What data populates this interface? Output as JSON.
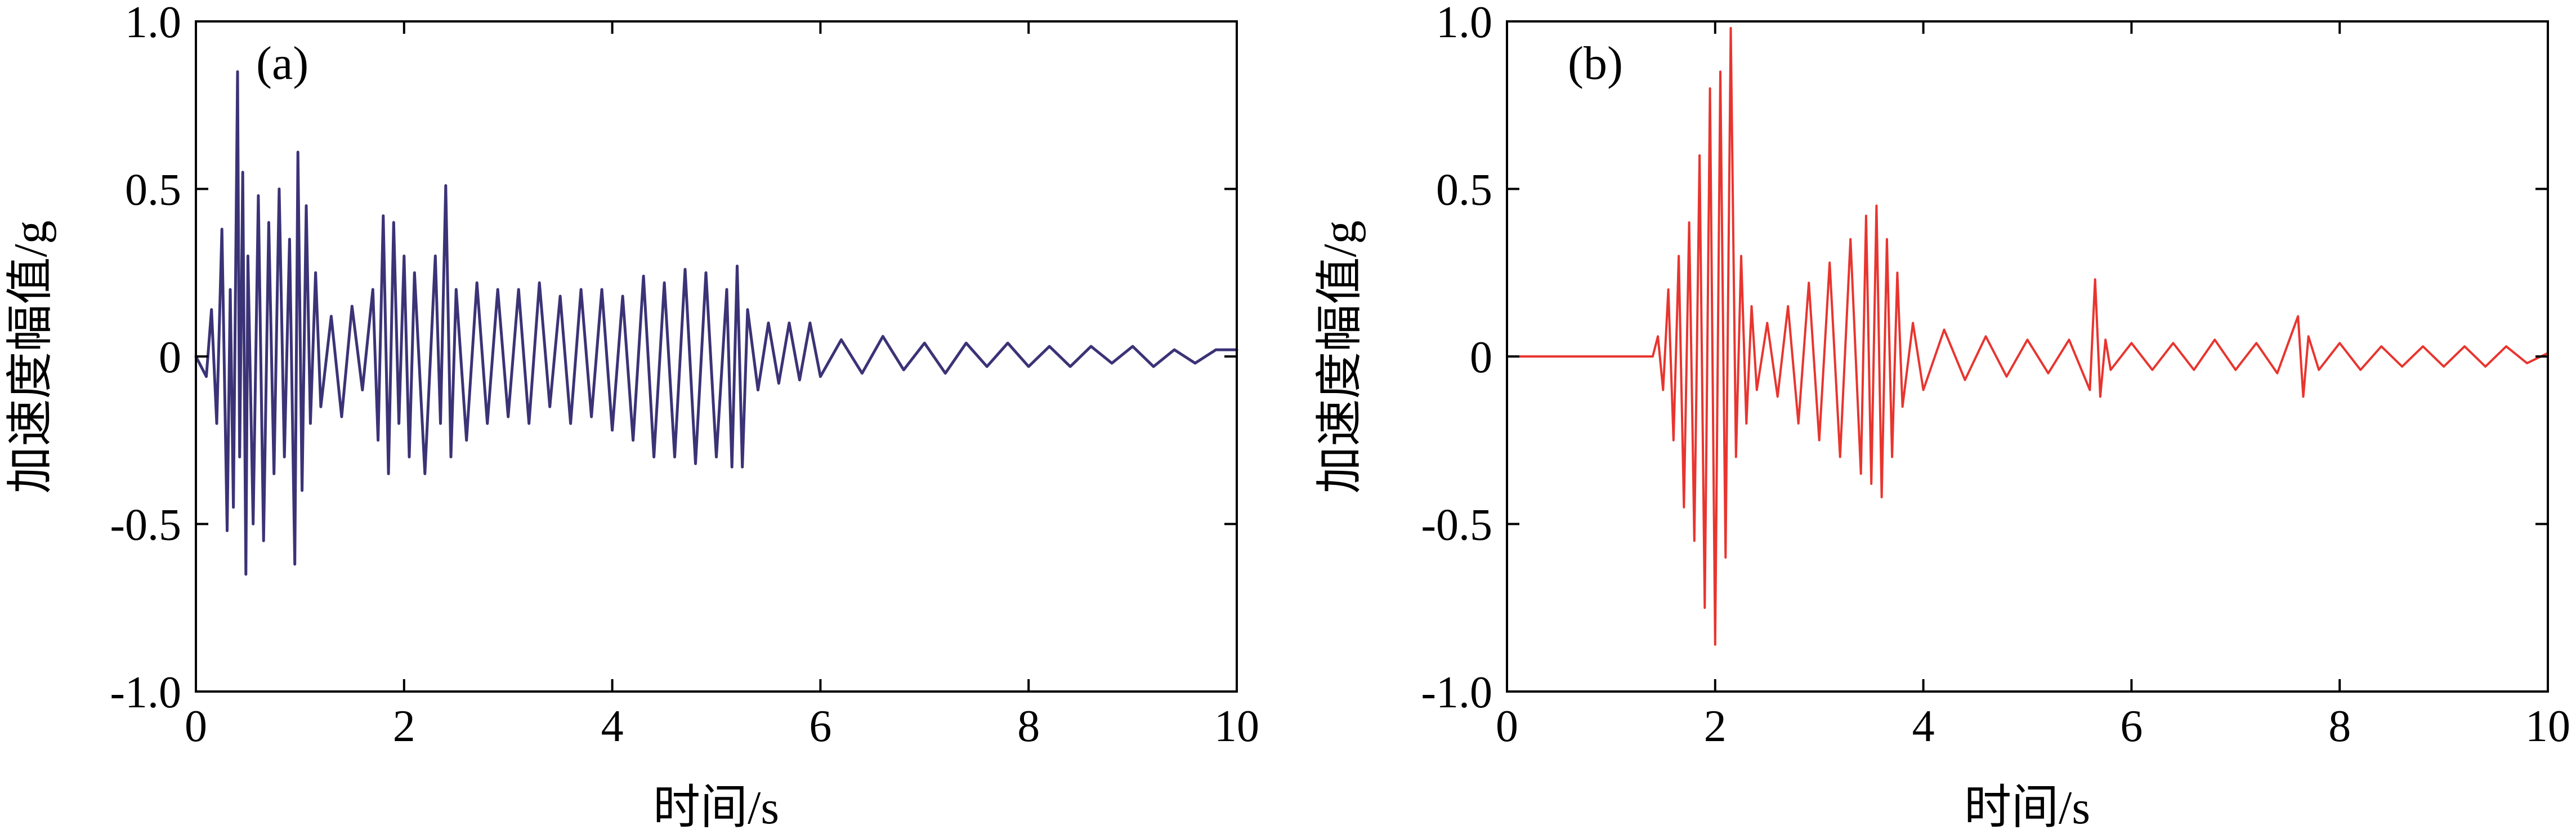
{
  "chart_data": [
    {
      "type": "line",
      "panel_label": "(a)",
      "xlabel": "时间/s",
      "ylabel": "加速度幅值/g",
      "xlim": [
        0,
        10
      ],
      "ylim": [
        -1.0,
        1.0
      ],
      "x_ticks": [
        "0",
        "2",
        "4",
        "6",
        "8",
        "10"
      ],
      "y_ticks": [
        "1.0",
        "0.5",
        "0",
        "-0.5",
        "-1.0"
      ],
      "grid": false,
      "color": "#3b3376",
      "series": [
        {
          "name": "加速度幅值",
          "x": [
            0.0,
            0.1,
            0.15,
            0.2,
            0.25,
            0.3,
            0.33,
            0.36,
            0.4,
            0.42,
            0.45,
            0.48,
            0.5,
            0.55,
            0.6,
            0.65,
            0.7,
            0.75,
            0.8,
            0.85,
            0.9,
            0.95,
            0.98,
            1.02,
            1.06,
            1.1,
            1.15,
            1.2,
            1.3,
            1.4,
            1.5,
            1.6,
            1.7,
            1.75,
            1.8,
            1.85,
            1.9,
            1.95,
            2.0,
            2.05,
            2.1,
            2.2,
            2.3,
            2.35,
            2.4,
            2.45,
            2.5,
            2.6,
            2.7,
            2.8,
            2.9,
            3.0,
            3.1,
            3.2,
            3.3,
            3.4,
            3.5,
            3.6,
            3.7,
            3.8,
            3.9,
            4.0,
            4.1,
            4.2,
            4.3,
            4.4,
            4.5,
            4.6,
            4.7,
            4.8,
            4.9,
            5.0,
            5.1,
            5.15,
            5.2,
            5.25,
            5.3,
            5.4,
            5.5,
            5.6,
            5.7,
            5.8,
            5.9,
            6.0,
            6.2,
            6.4,
            6.6,
            6.8,
            7.0,
            7.2,
            7.4,
            7.6,
            7.8,
            8.0,
            8.2,
            8.4,
            8.6,
            8.8,
            9.0,
            9.2,
            9.4,
            9.6,
            9.8,
            10.0
          ],
          "y": [
            0.0,
            -0.06,
            0.14,
            -0.2,
            0.38,
            -0.52,
            0.2,
            -0.45,
            0.85,
            -0.3,
            0.55,
            -0.65,
            0.3,
            -0.5,
            0.48,
            -0.55,
            0.4,
            -0.35,
            0.5,
            -0.3,
            0.35,
            -0.62,
            0.61,
            -0.4,
            0.45,
            -0.2,
            0.25,
            -0.15,
            0.12,
            -0.18,
            0.15,
            -0.1,
            0.2,
            -0.25,
            0.42,
            -0.35,
            0.4,
            -0.2,
            0.3,
            -0.3,
            0.25,
            -0.35,
            0.3,
            -0.2,
            0.51,
            -0.3,
            0.2,
            -0.25,
            0.22,
            -0.2,
            0.2,
            -0.18,
            0.2,
            -0.2,
            0.22,
            -0.15,
            0.18,
            -0.2,
            0.2,
            -0.18,
            0.2,
            -0.22,
            0.18,
            -0.25,
            0.24,
            -0.3,
            0.22,
            -0.3,
            0.26,
            -0.32,
            0.25,
            -0.3,
            0.2,
            -0.33,
            0.27,
            -0.33,
            0.14,
            -0.1,
            0.1,
            -0.08,
            0.1,
            -0.07,
            0.1,
            -0.06,
            0.05,
            -0.05,
            0.06,
            -0.04,
            0.04,
            -0.05,
            0.04,
            -0.03,
            0.04,
            -0.03,
            0.03,
            -0.03,
            0.03,
            -0.02,
            0.03,
            -0.03,
            0.02,
            -0.02,
            0.02,
            0.02
          ]
        }
      ]
    },
    {
      "type": "line",
      "panel_label": "(b)",
      "xlabel": "时间/s",
      "ylabel": "加速度幅值/g",
      "xlim": [
        0,
        10
      ],
      "ylim": [
        -1.0,
        1.0
      ],
      "x_ticks": [
        "0",
        "2",
        "4",
        "6",
        "8",
        "10"
      ],
      "y_ticks": [
        "1.0",
        "0.5",
        "0",
        "-0.5",
        "-1.0"
      ],
      "grid": false,
      "color": "#e8352f",
      "series": [
        {
          "name": "加速度幅值",
          "x": [
            0.0,
            1.4,
            1.45,
            1.5,
            1.55,
            1.6,
            1.65,
            1.7,
            1.75,
            1.8,
            1.85,
            1.9,
            1.95,
            2.0,
            2.05,
            2.1,
            2.15,
            2.2,
            2.25,
            2.3,
            2.35,
            2.4,
            2.5,
            2.6,
            2.7,
            2.8,
            2.9,
            3.0,
            3.1,
            3.2,
            3.3,
            3.4,
            3.45,
            3.5,
            3.55,
            3.6,
            3.65,
            3.7,
            3.75,
            3.8,
            3.9,
            4.0,
            4.2,
            4.4,
            4.6,
            4.8,
            5.0,
            5.2,
            5.4,
            5.6,
            5.65,
            5.7,
            5.75,
            5.8,
            6.0,
            6.2,
            6.4,
            6.6,
            6.8,
            7.0,
            7.2,
            7.4,
            7.6,
            7.65,
            7.7,
            7.8,
            8.0,
            8.2,
            8.4,
            8.6,
            8.8,
            9.0,
            9.2,
            9.4,
            9.6,
            9.8,
            10.0
          ],
          "y": [
            0.0,
            0.0,
            0.06,
            -0.1,
            0.2,
            -0.25,
            0.3,
            -0.45,
            0.4,
            -0.55,
            0.6,
            -0.75,
            0.8,
            -0.86,
            0.85,
            -0.6,
            0.98,
            -0.3,
            0.3,
            -0.2,
            0.15,
            -0.1,
            0.1,
            -0.12,
            0.15,
            -0.2,
            0.22,
            -0.25,
            0.28,
            -0.3,
            0.35,
            -0.35,
            0.42,
            -0.38,
            0.45,
            -0.42,
            0.35,
            -0.3,
            0.25,
            -0.15,
            0.1,
            -0.1,
            0.08,
            -0.07,
            0.06,
            -0.06,
            0.05,
            -0.05,
            0.05,
            -0.1,
            0.23,
            -0.12,
            0.05,
            -0.04,
            0.04,
            -0.04,
            0.04,
            -0.04,
            0.05,
            -0.04,
            0.04,
            -0.05,
            0.12,
            -0.12,
            0.06,
            -0.04,
            0.04,
            -0.04,
            0.03,
            -0.03,
            0.03,
            -0.03,
            0.03,
            -0.03,
            0.03,
            -0.02,
            0.01
          ]
        }
      ]
    }
  ]
}
